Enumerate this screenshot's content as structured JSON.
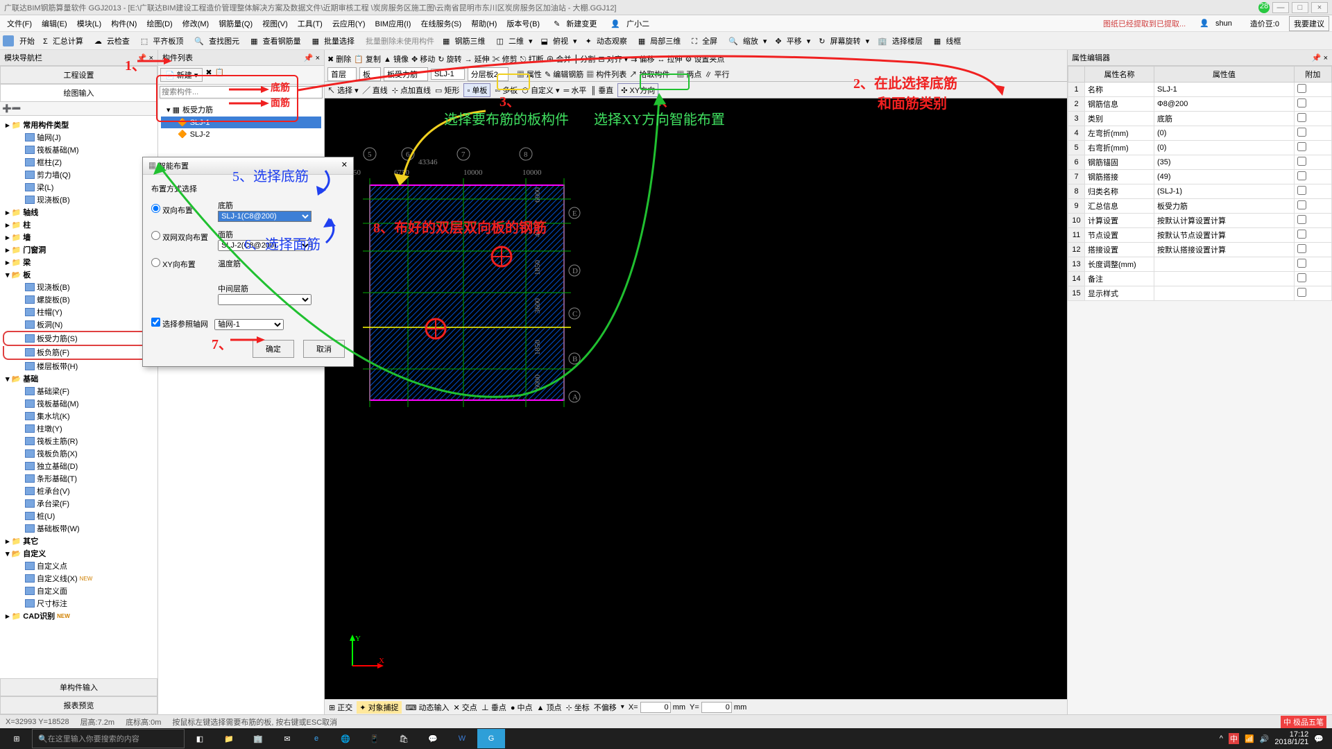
{
  "title": "广联达BIM钢筋算量软件 GGJ2013 - [E:\\广联达BIM建设工程造价管理整体解决方案及数据文件\\近期审核工程 \\炭房服务区施工图\\云南省昆明市东川区炭房服务区加油站 - 大棚.GGJ12]",
  "topRight": {
    "msg": "图纸已经提取到已提取...",
    "user": "shun",
    "price": "造价豆:0",
    "btn": "我要建议"
  },
  "menu": [
    "文件(F)",
    "编辑(E)",
    "模块(L)",
    "构件(N)",
    "绘图(D)",
    "修改(M)",
    "钢筋量(Q)",
    "视图(V)",
    "工具(T)",
    "云应用(Y)",
    "BIM应用(I)",
    "在线服务(S)",
    "帮助(H)",
    "版本号(B)"
  ],
  "menuExtra": [
    "新建变更",
    "广小二"
  ],
  "tb1": [
    "开始",
    "汇总计算",
    "云检查",
    "平齐板顶",
    "查找图元",
    "查看钢筋量",
    "批量选择",
    "钢筋三维",
    "二维",
    "俯视",
    "动态观察",
    "局部三维",
    "全屏",
    "缩放",
    "平移",
    "屏幕旋转",
    "选择楼层",
    "线框"
  ],
  "leftPanel": {
    "title": "模块导航栏",
    "tab1": "工程设置",
    "tab2": "绘图输入",
    "bottom1": "单构件输入",
    "bottom2": "报表预览"
  },
  "tree": {
    "root": "常用构件类型",
    "items1": [
      "轴网(J)",
      "筏板基础(M)",
      "框柱(Z)",
      "剪力墙(Q)",
      "梁(L)",
      "现浇板(B)"
    ],
    "groups": [
      "轴线",
      "柱",
      "墙",
      "门窗洞",
      "梁",
      "板"
    ],
    "ban": [
      "现浇板(B)",
      "螺旋板(B)",
      "柱帽(Y)",
      "板洞(N)",
      "板受力筋(S)",
      "板负筋(F)",
      "楼层板带(H)"
    ],
    "jichu_label": "基础",
    "jichu": [
      "基础梁(F)",
      "筏板基础(M)",
      "集水坑(K)",
      "柱墩(Y)",
      "筏板主筋(R)",
      "筏板负筋(X)",
      "独立基础(D)",
      "条形基础(T)",
      "桩承台(V)",
      "承台梁(F)",
      "桩(U)",
      "基础板带(W)"
    ],
    "other": [
      "其它",
      "自定义"
    ],
    "custom": [
      "自定义点",
      "自定义线(X)",
      "自定义面",
      "尺寸标注"
    ],
    "cad": "CAD识别"
  },
  "midPanel": {
    "title": "构件列表",
    "newBtn": "新建",
    "search": "搜索构件...",
    "root": "板受力筋",
    "items": [
      "SLJ-1",
      "SLJ-2"
    ],
    "ann1": "底筋",
    "ann2": "面筋"
  },
  "canvasTb": {
    "r1": [
      "删除",
      "复制",
      "镜像",
      "移动",
      "旋转",
      "延伸",
      "修剪",
      "打断",
      "合并",
      "分割",
      "对齐",
      "偏移",
      "拉伸",
      "设置夹点"
    ],
    "r2a": [
      "首层",
      "板",
      "板受力筋",
      "SLJ-1",
      "分层板2"
    ],
    "r2b": [
      "属性",
      "编辑钢筋",
      "构件列表",
      "拾取构件"
    ],
    "r2c": [
      "两点",
      "平行"
    ],
    "r3": [
      "选择",
      "直线",
      "点加直线",
      "矩形",
      "单板",
      "多板",
      "自定义",
      "水平",
      "垂直",
      "XY方向"
    ]
  },
  "annotations": {
    "a1": "1、",
    "a2": "2、在此选择底筋\n       和面筋类别",
    "a3": "3、",
    "a4": "4、",
    "a5": "5、选择底筋",
    "a6": "6、选择面筋",
    "a7": "7、",
    "a8": "8、布好的双层双向板的钢筋",
    "greenL": "选择要布筋的板构件",
    "greenR": "选择XY方向智能布置"
  },
  "grid": {
    "cols": [
      "5",
      "6",
      "7",
      "8"
    ],
    "colDims": [
      "8250",
      "6750",
      "43346",
      "10000",
      "10000"
    ],
    "rows": [
      "A",
      "B",
      "C",
      "D",
      "E"
    ],
    "rowDims": [
      "6000",
      "1850",
      "3600",
      "1850",
      "4350",
      "6000",
      "5950"
    ]
  },
  "dialog": {
    "title": "智能布置",
    "section": "布置方式选择",
    "opt1": "双向布置",
    "opt2": "双网双向布置",
    "opt3": "XY向布置",
    "l1": "底筋",
    "v1": "SLJ-1(C8@200)",
    "l2": "面筋",
    "v2": "SLJ-2(C8@200)",
    "l3": "温度筋",
    "l4": "中间层筋",
    "chk": "选择参照轴网",
    "chkv": "轴网-1",
    "ok": "确定",
    "cancel": "取消"
  },
  "propPanel": {
    "title": "属性编辑器",
    "h1": "属性名称",
    "h2": "属性值",
    "h3": "附加",
    "rows": [
      [
        "1",
        "名称",
        "SLJ-1"
      ],
      [
        "2",
        "钢筋信息",
        "Φ8@200"
      ],
      [
        "3",
        "类别",
        "底筋"
      ],
      [
        "4",
        "左弯折(mm)",
        "(0)"
      ],
      [
        "5",
        "右弯折(mm)",
        "(0)"
      ],
      [
        "6",
        "钢筋锚固",
        "(35)"
      ],
      [
        "7",
        "钢筋搭接",
        "(49)"
      ],
      [
        "8",
        "归类名称",
        "(SLJ-1)"
      ],
      [
        "9",
        "汇总信息",
        "板受力筋"
      ],
      [
        "10",
        "计算设置",
        "按默认计算设置计算"
      ],
      [
        "11",
        "节点设置",
        "按默认节点设置计算"
      ],
      [
        "12",
        "搭接设置",
        "按默认搭接设置计算"
      ],
      [
        "13",
        "长度调整(mm)",
        ""
      ],
      [
        "14",
        "备注",
        ""
      ],
      [
        "15",
        "显示样式",
        ""
      ]
    ]
  },
  "btmToolbar": [
    "正交",
    "对象捕捉",
    "动态输入",
    "交点",
    "垂点",
    "中点",
    "顶点",
    "坐标",
    "不偏移"
  ],
  "coord": {
    "x": "0",
    "y": "0",
    "unit": "mm"
  },
  "status": {
    "xy": "X=32993 Y=18528",
    "floor": "层高:7.2m",
    "bottom": "底标高:0m",
    "hint": "按鼠标左键选择需要布筋的板, 按右键或ESC取消"
  },
  "ime": "极品五笔",
  "time": "17:12",
  "date": "2018/1/21",
  "searchBox": "在这里输入你要搜索的内容"
}
